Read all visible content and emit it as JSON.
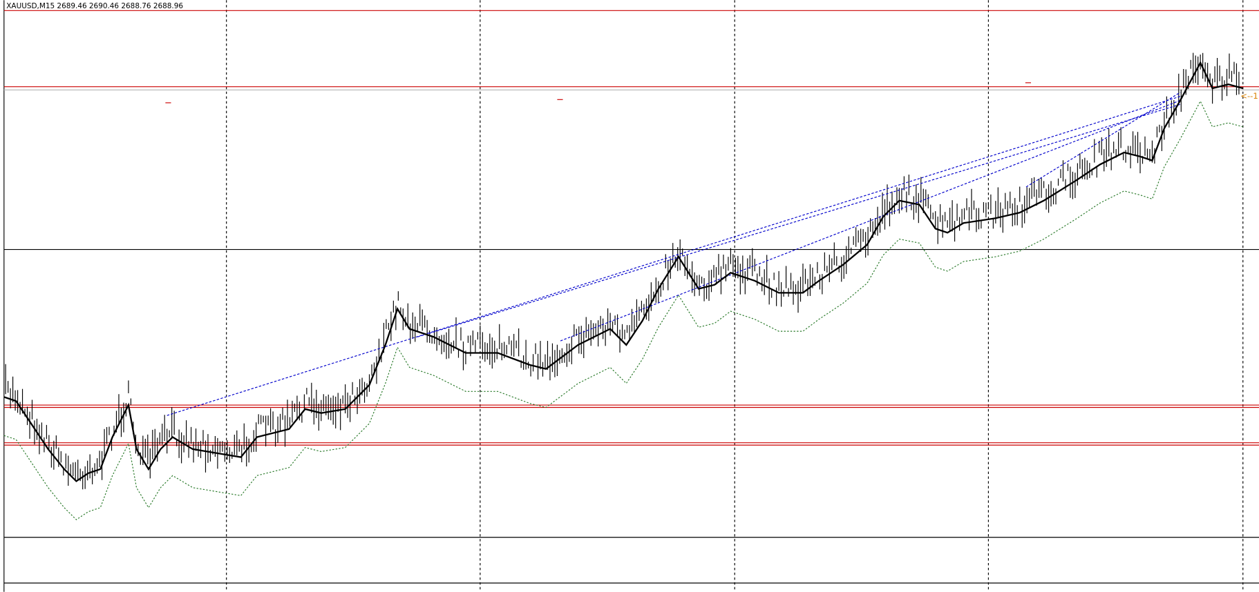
{
  "header": {
    "title": "XAUUSD,M15  2689.46 2690.46 2688.76 2688.96"
  },
  "right_label": "<--1"
}
